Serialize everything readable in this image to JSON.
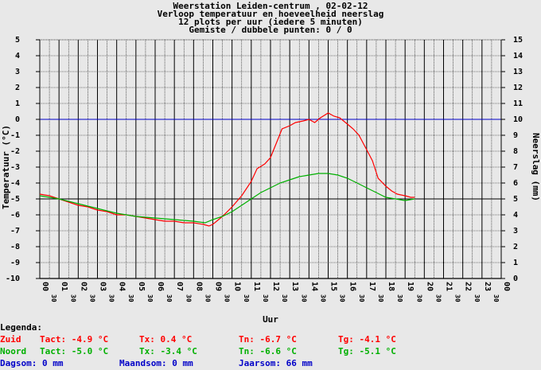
{
  "header": {
    "line1": "Weerstation Leiden-centrum , 02-02-12",
    "line2": "Verloop temperatuur en hoeveelheid neerslag",
    "line3": "12 plots per uur (iedere 5 minuten)",
    "line4": "Gemiste / dubbele punten: 0 / 0"
  },
  "chart_data": {
    "type": "line",
    "xlabel": "Uur",
    "ylabel_left": "Temperatuur (°C)",
    "ylabel_right": "Neerslag (mm)",
    "ylim_left": [
      -10,
      5
    ],
    "ylim_right": [
      0,
      15
    ],
    "xlim": [
      0,
      24
    ],
    "left_ticks": [
      "5",
      "4",
      "3",
      "2",
      "1",
      "0",
      "-1",
      "-2",
      "-3",
      "-4",
      "-5",
      "-6",
      "-7",
      "-8",
      "-9",
      "-10"
    ],
    "right_ticks": [
      "15",
      "14",
      "13",
      "12",
      "11",
      "10",
      "9",
      "8",
      "7",
      "6",
      "5",
      "4",
      "3",
      "2",
      "1",
      "0"
    ],
    "hour_labels": [
      "00",
      "01",
      "02",
      "03",
      "04",
      "05",
      "06",
      "07",
      "08",
      "09",
      "10",
      "11",
      "12",
      "13",
      "14",
      "15",
      "16",
      "17",
      "18",
      "19",
      "20",
      "21",
      "22",
      "23",
      "00"
    ],
    "half_label": "30",
    "grid": true,
    "reference_lines": [
      {
        "value": 0,
        "color": "#0000c8"
      },
      {
        "value": -5,
        "color": "#000000"
      }
    ],
    "series": [
      {
        "name": "Zuid",
        "color": "#ff0000",
        "x": [
          0,
          0.5,
          1,
          1.5,
          2,
          2.5,
          3,
          3.5,
          4,
          4.5,
          5,
          5.5,
          6,
          6.5,
          7,
          7.5,
          8,
          8.5,
          8.8,
          9,
          9.5,
          10,
          10.5,
          11,
          11.3,
          11.7,
          12,
          12.3,
          12.6,
          13,
          13.3,
          13.7,
          14,
          14.3,
          14.6,
          15,
          15.3,
          15.6,
          16,
          16.3,
          16.6,
          17,
          17.3,
          17.6,
          18,
          18.3,
          18.6,
          19,
          19.3,
          19.5
        ],
        "values": [
          -4.7,
          -4.8,
          -5.0,
          -5.2,
          -5.4,
          -5.5,
          -5.7,
          -5.8,
          -6.0,
          -6.0,
          -6.1,
          -6.2,
          -6.3,
          -6.4,
          -6.4,
          -6.5,
          -6.5,
          -6.6,
          -6.7,
          -6.6,
          -6.1,
          -5.5,
          -4.8,
          -3.9,
          -3.1,
          -2.8,
          -2.4,
          -1.5,
          -0.6,
          -0.4,
          -0.2,
          -0.1,
          0.0,
          -0.2,
          0.1,
          0.4,
          0.2,
          0.1,
          -0.3,
          -0.6,
          -1.0,
          -1.9,
          -2.6,
          -3.7,
          -4.2,
          -4.5,
          -4.7,
          -4.8,
          -4.9,
          -4.9
        ]
      },
      {
        "name": "Noord",
        "color": "#00b000",
        "x": [
          0,
          1,
          2,
          3,
          4,
          5,
          6,
          7,
          8,
          8.6,
          9,
          9.5,
          10,
          10.5,
          11,
          11.5,
          12,
          12.5,
          13,
          13.5,
          14,
          14.5,
          15,
          15.5,
          16,
          16.5,
          17,
          17.5,
          18,
          18.5,
          19,
          19.5
        ],
        "values": [
          -4.8,
          -5.0,
          -5.3,
          -5.6,
          -5.9,
          -6.1,
          -6.2,
          -6.3,
          -6.4,
          -6.5,
          -6.3,
          -6.1,
          -5.8,
          -5.4,
          -5.0,
          -4.6,
          -4.3,
          -4.0,
          -3.8,
          -3.6,
          -3.5,
          -3.4,
          -3.4,
          -3.5,
          -3.7,
          -4.0,
          -4.3,
          -4.6,
          -4.9,
          -5.0,
          -5.1,
          -5.0
        ]
      }
    ]
  },
  "legend": {
    "title": "Legenda:",
    "row1": {
      "label": "Zuid",
      "tact": "Tact: -4.9 °C",
      "tx": "Tx: 0.4 °C",
      "tn": "Tn: -6.7 °C",
      "tg": "Tg: -4.1 °C"
    },
    "row2": {
      "label": "Noord",
      "tact": "Tact: -5.0 °C",
      "tx": "Tx: -3.4 °C",
      "tn": "Tn: -6.6 °C",
      "tg": "Tg: -5.1 °C"
    },
    "row3": {
      "dag": "Dagsom: 0 mm",
      "maand": "Maandsom: 0 mm",
      "jaar": "Jaarsom: 66 mm"
    }
  },
  "colors": {
    "background": "#e8e8e8",
    "zuid": "#ff0000",
    "noord": "#00b000",
    "blue": "#0000c8"
  }
}
